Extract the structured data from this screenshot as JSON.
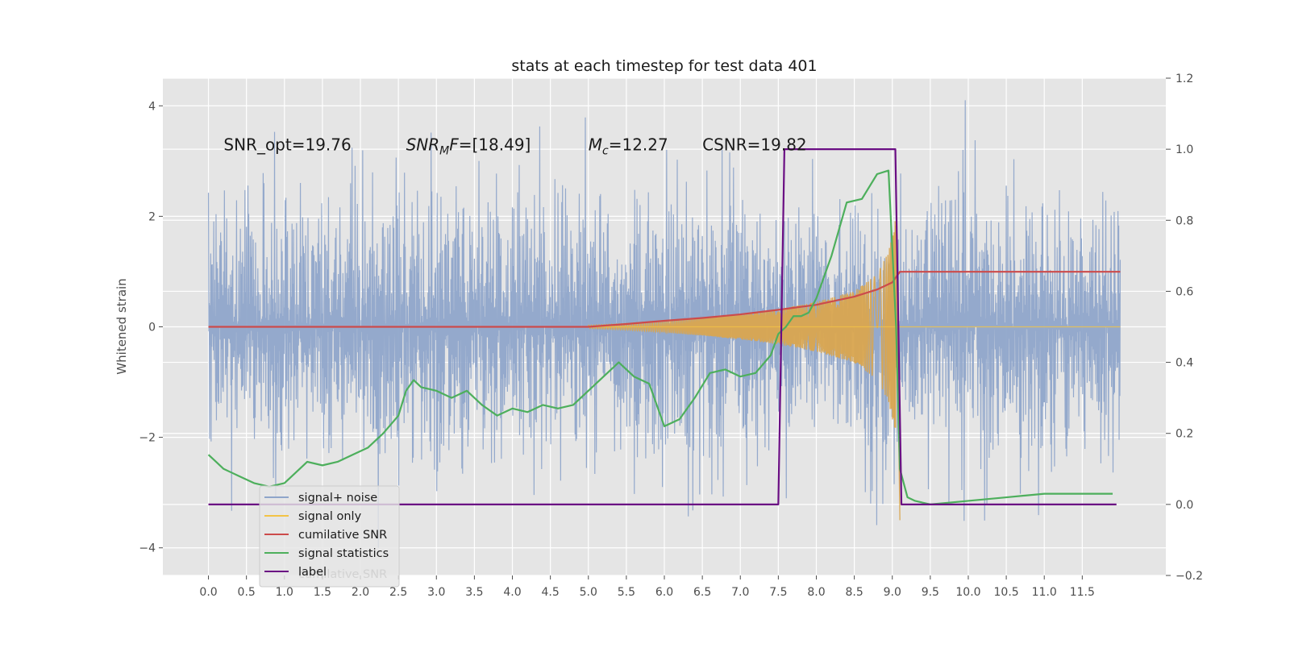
{
  "chart_data": {
    "type": "line",
    "title": "stats at each timestep for test data 401",
    "ylabel": "Whitened strain",
    "xlim": [
      -0.6,
      12.6
    ],
    "ylim": [
      -4.5,
      4.5
    ],
    "y2lim": [
      -0.2,
      1.2
    ],
    "x_ticks": [
      0.0,
      0.5,
      1.0,
      1.5,
      2.0,
      2.5,
      3.0,
      3.5,
      4.0,
      4.5,
      5.0,
      5.5,
      6.0,
      6.5,
      7.0,
      7.5,
      8.0,
      8.5,
      9.0,
      9.5,
      10.0,
      10.5,
      11.0,
      11.5
    ],
    "x_tick_labels": [
      "0.0",
      "0.5",
      "1.0",
      "1.5",
      "2.0",
      "2.5",
      "3.0",
      "3.5",
      "4.0",
      "4.5",
      "5.0",
      "5.5",
      "6.0",
      "6.5",
      "7.0",
      "7.5",
      "8.0",
      "8.5",
      "9.0",
      "9.5",
      "10.0",
      "10.5",
      "11.0",
      "11.5"
    ],
    "y_ticks": [
      -4,
      -2,
      0,
      2,
      4
    ],
    "y_tick_labels": [
      "−4",
      "−2",
      "0",
      "2",
      "4"
    ],
    "y2_ticks": [
      -0.2,
      0.0,
      0.2,
      0.4,
      0.6,
      0.8,
      1.0,
      1.2
    ],
    "y2_tick_labels": [
      "−0.2",
      "0.0",
      "0.2",
      "0.4",
      "0.6",
      "0.8",
      "1.0",
      "1.2"
    ],
    "grid": true,
    "annotations": [
      {
        "text": "SNR_opt=19.76",
        "x": 0.2,
        "y": 3.3
      },
      {
        "text": "SNR_MF=[18.49]",
        "x": 2.6,
        "y": 3.3
      },
      {
        "text": "M_c=12.27",
        "x": 5.0,
        "y": 3.3
      },
      {
        "text": "CSNR=19.82",
        "x": 6.5,
        "y": 3.3
      }
    ],
    "legend": {
      "placement": "lower-left",
      "entries": [
        {
          "name": "signal+ noise",
          "color": "#8fa5ca"
        },
        {
          "name": "signal only",
          "color": "#f3c346"
        },
        {
          "name": "cumilative SNR",
          "color": "#cc4b4b"
        },
        {
          "name": "signal statistics",
          "color": "#4daf5c"
        },
        {
          "name": "label",
          "color": "#6a0d83"
        }
      ],
      "hidden_entry": "cumilative SNR"
    },
    "series": [
      {
        "name": "signal+ noise",
        "axis": "left",
        "color": "#8fa5ca",
        "kind": "noise",
        "x_range": [
          0.0,
          12.0
        ],
        "approx_sigma": 1.0,
        "approx_extremes": [
          -4.0,
          4.1
        ]
      },
      {
        "name": "signal only",
        "axis": "left",
        "color": "#d9a54f",
        "kind": "chirp_envelope",
        "x": [
          5.0,
          5.5,
          6.0,
          6.5,
          7.0,
          7.5,
          8.0,
          8.5,
          8.8,
          8.95,
          9.05,
          9.1
        ],
        "envelope": [
          0.03,
          0.06,
          0.1,
          0.16,
          0.23,
          0.32,
          0.45,
          0.65,
          0.95,
          1.35,
          2.0,
          0.0
        ]
      },
      {
        "name": "cumilative SNR",
        "axis": "right",
        "color": "#cc4b4b",
        "x": [
          0.0,
          5.0,
          5.5,
          6.0,
          6.5,
          7.0,
          7.5,
          8.0,
          8.5,
          8.8,
          9.0,
          9.1,
          12.0
        ],
        "values": [
          0.5,
          0.5,
          0.508,
          0.517,
          0.525,
          0.535,
          0.548,
          0.562,
          0.585,
          0.605,
          0.625,
          0.655,
          0.655
        ]
      },
      {
        "name": "signal statistics",
        "axis": "right",
        "color": "#4daf5c",
        "x": [
          0.0,
          0.1,
          0.2,
          0.3,
          0.4,
          0.5,
          0.6,
          0.8,
          1.0,
          1.2,
          1.3,
          1.5,
          1.7,
          1.9,
          2.1,
          2.3,
          2.5,
          2.6,
          2.7,
          2.8,
          3.0,
          3.2,
          3.4,
          3.6,
          3.8,
          4.0,
          4.2,
          4.4,
          4.6,
          4.8,
          5.0,
          5.2,
          5.4,
          5.6,
          5.8,
          6.0,
          6.2,
          6.4,
          6.6,
          6.8,
          7.0,
          7.2,
          7.4,
          7.5,
          7.6,
          7.7,
          7.8,
          7.9,
          8.0,
          8.2,
          8.4,
          8.6,
          8.8,
          8.95,
          9.05,
          9.1,
          9.2,
          9.3,
          9.5,
          10.0,
          10.5,
          11.0,
          11.5,
          11.9
        ],
        "values": [
          0.14,
          0.12,
          0.1,
          0.09,
          0.08,
          0.07,
          0.06,
          0.05,
          0.06,
          0.1,
          0.12,
          0.11,
          0.12,
          0.14,
          0.16,
          0.2,
          0.25,
          0.32,
          0.35,
          0.33,
          0.32,
          0.3,
          0.32,
          0.28,
          0.25,
          0.27,
          0.26,
          0.28,
          0.27,
          0.28,
          0.32,
          0.36,
          0.4,
          0.36,
          0.34,
          0.22,
          0.24,
          0.3,
          0.37,
          0.38,
          0.36,
          0.37,
          0.42,
          0.48,
          0.5,
          0.53,
          0.53,
          0.54,
          0.58,
          0.7,
          0.85,
          0.86,
          0.93,
          0.94,
          0.5,
          0.1,
          0.02,
          0.01,
          0.0,
          0.01,
          0.02,
          0.03,
          0.03,
          0.03
        ]
      },
      {
        "name": "label",
        "axis": "right",
        "color": "#6a0d83",
        "x": [
          0.0,
          7.5,
          7.58,
          9.04,
          9.12,
          11.95
        ],
        "values": [
          0.0,
          0.0,
          1.0,
          1.0,
          0.0,
          0.0
        ]
      }
    ]
  }
}
